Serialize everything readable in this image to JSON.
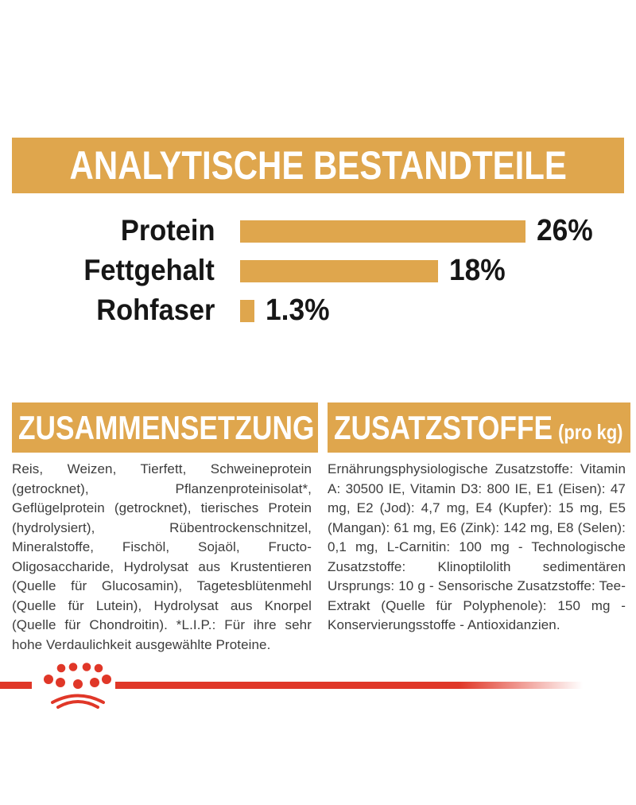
{
  "header": {
    "title": "ANALYTISCHE BESTANDTEILE"
  },
  "chart_data": {
    "type": "bar",
    "orientation": "horizontal",
    "title": "ANALYTISCHE BESTANDTEILE",
    "categories": [
      "Protein",
      "Fettgehalt",
      "Rohfaser"
    ],
    "values": [
      26,
      18,
      1.3
    ],
    "value_labels": [
      "26%",
      "18%",
      "1.3%"
    ],
    "xlim": [
      0,
      26
    ],
    "grid": "off",
    "legend": "none",
    "bar_color": "#DFA64D"
  },
  "sections": {
    "composition": {
      "title": "ZUSAMMENSETZUNG",
      "body": "Reis, Weizen, Tierfett, Schweineprotein (getrocknet), Pflanzenproteinisolat*, Geflügelprotein (getrocknet), tierisches Protein (hydrolysiert), Rübentrockenschnitzel, Mineralstoffe, Fischöl, Sojaöl, Fructo-Oligosaccharide, Hydrolysat aus Krustentieren (Quelle für Glucosamin), Tagetesblütenmehl (Quelle für Lutein), Hydrolysat aus Knorpel (Quelle für Chondroitin). *L.I.P.: Für ihre sehr hohe Verdaulichkeit ausgewählte Proteine."
    },
    "additives": {
      "title": "ZUSATZSTOFFE",
      "subtitle": "(pro kg)",
      "body": "Ernährungsphysiologische Zusatzstoffe: Vitamin A: 30500 IE, Vitamin D3: 800 IE, E1 (Eisen): 47 mg, E2 (Jod): 4,7 mg, E4 (Kupfer): 15 mg, E5 (Mangan): 61 mg, E6 (Zink): 142 mg, E8 (Selen): 0,1 mg, L-Carnitin: 100 mg - Technologische Zusatzstoffe: Klinoptilolith sedimentären Ursprungs: 10 g - Sensorische Zusatzstoffe: Tee-Extrakt (Quelle für Polyphenole): 150 mg - Konservierungsstoffe - Antioxidanzien."
    }
  },
  "footer": {
    "logo": "royal-canin-crown"
  },
  "colors": {
    "gold": "#DFA64D",
    "red": "#E03728",
    "header_text": "#FFFFFF",
    "body_text": "#3C3C3C",
    "chart_text": "#161616"
  }
}
